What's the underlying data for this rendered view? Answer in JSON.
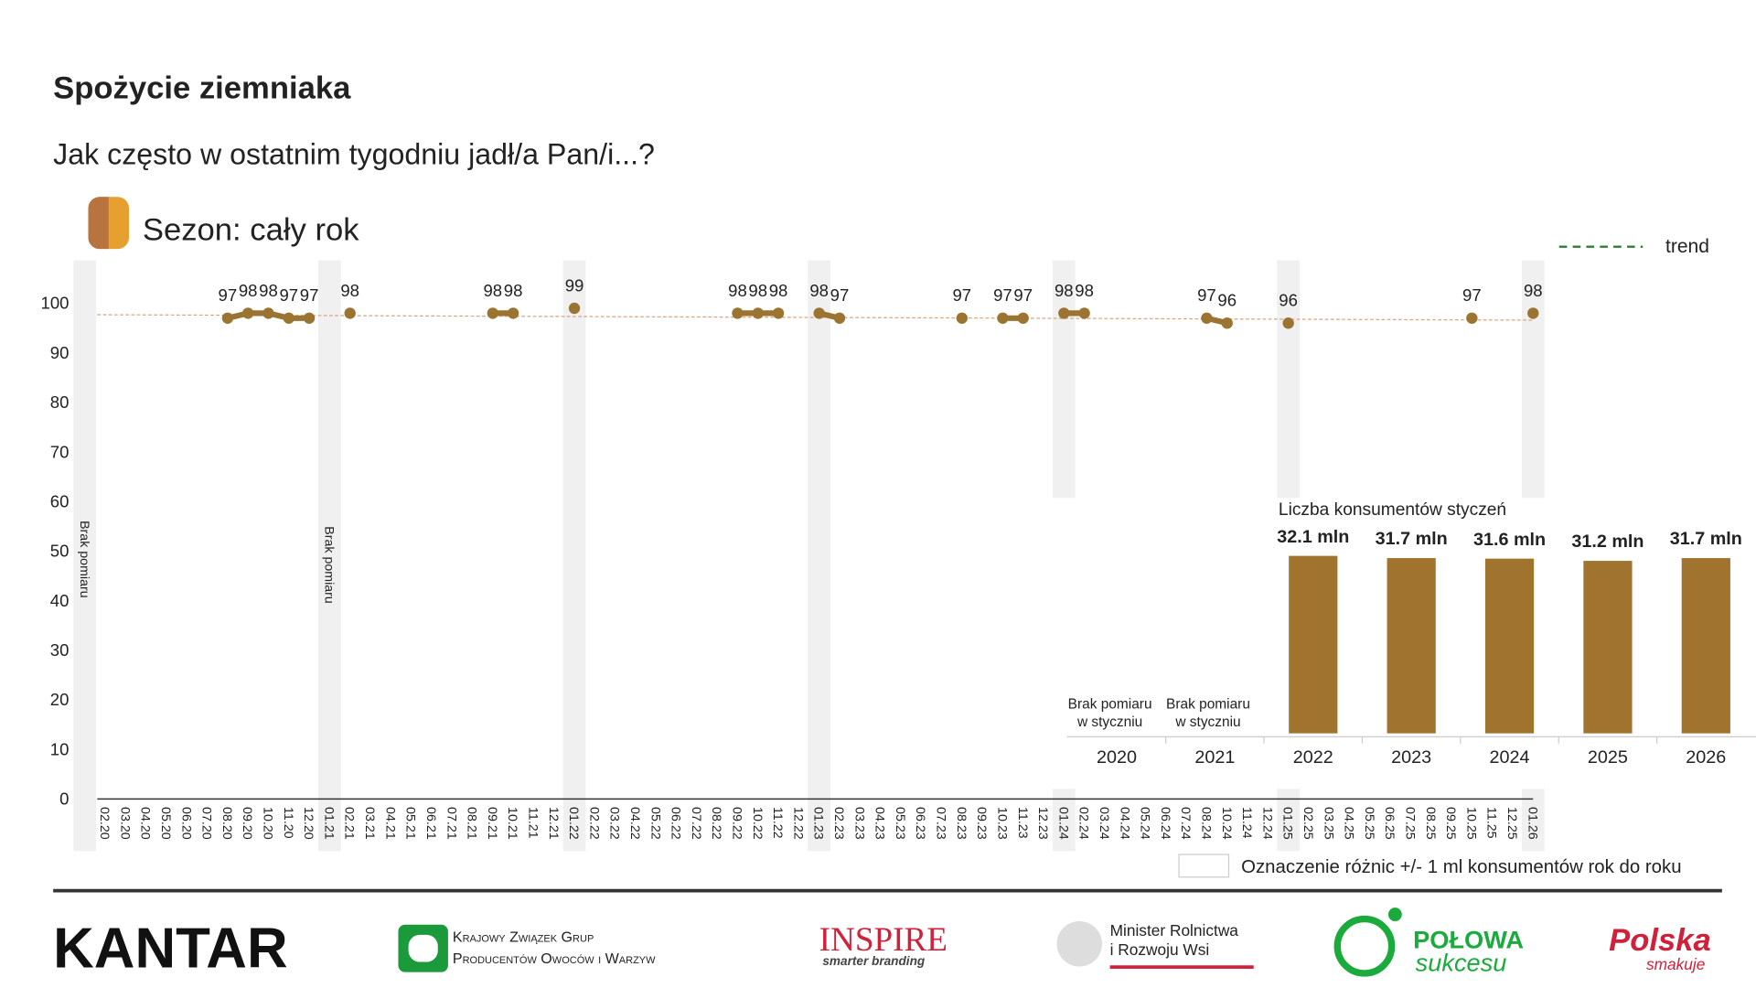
{
  "header": {
    "title": "Spożycie ziemniaka",
    "subtitle": "Jak często w ostatnim tygodniu jadł/a Pan/i...?",
    "season": "Sezon: cały rok"
  },
  "chart_data": [
    {
      "type": "line",
      "categories": [
        "02.20",
        "03.20",
        "04.20",
        "05.20",
        "06.20",
        "07.20",
        "08.20",
        "09.20",
        "10.20",
        "11.20",
        "12.20",
        "01.21",
        "02.21",
        "03.21",
        "04.21",
        "05.21",
        "06.21",
        "07.21",
        "08.21",
        "09.21",
        "10.21",
        "11.21",
        "12.21",
        "01.22",
        "02.22",
        "03.22",
        "04.22",
        "05.22",
        "06.22",
        "07.22",
        "08.22",
        "09.22",
        "10.22",
        "11.22",
        "12.22",
        "01.23",
        "02.23",
        "03.23",
        "04.23",
        "05.23",
        "06.23",
        "07.23",
        "08.23",
        "09.23",
        "10.23",
        "11.23",
        "12.23",
        "01.24",
        "02.24",
        "03.24",
        "04.24",
        "05.24",
        "06.24",
        "07.24",
        "08.24",
        "10.24",
        "11.24",
        "12.24",
        "01.25",
        "02.25",
        "03.25",
        "04.25",
        "05.25",
        "06.25",
        "07.25",
        "08.25",
        "09.25",
        "10.25",
        "11.25",
        "12.25",
        "01.26"
      ],
      "values": [
        null,
        null,
        null,
        null,
        null,
        null,
        97,
        98,
        98,
        97,
        97,
        null,
        98,
        null,
        null,
        null,
        null,
        null,
        null,
        98,
        98,
        null,
        null,
        99,
        null,
        null,
        null,
        null,
        null,
        null,
        null,
        98,
        98,
        98,
        null,
        98,
        97,
        null,
        null,
        null,
        null,
        null,
        97,
        null,
        97,
        97,
        null,
        98,
        98,
        null,
        null,
        null,
        null,
        null,
        97,
        96,
        null,
        null,
        96,
        null,
        null,
        null,
        null,
        null,
        null,
        null,
        null,
        97,
        null,
        null,
        98
      ],
      "color": "#9b7431",
      "ylim": [
        0,
        100
      ],
      "yticks": [
        0,
        10,
        20,
        30,
        40,
        50,
        60,
        70,
        80,
        90,
        100
      ],
      "trend": {
        "name": "trend",
        "color": "#2e7d32",
        "line_color": "#d9a47c",
        "start": 97.7,
        "end": 96.6
      },
      "legend": "top-right",
      "annotations": [
        "Brak pomiaru",
        "Brak pomiaru"
      ]
    },
    {
      "type": "bar",
      "title": "Liczba konsumentów styczeń",
      "categories": [
        "2020",
        "2021",
        "2022",
        "2023",
        "2024",
        "2025",
        "2026"
      ],
      "values": [
        null,
        null,
        32.1,
        31.7,
        31.6,
        31.2,
        31.7
      ],
      "value_labels": [
        null,
        null,
        "32.1 mln",
        "31.7 mln",
        "31.6 mln",
        "31.2 mln",
        "31.7 mln"
      ],
      "annotations": [
        [
          "Brak pomiaru",
          "w styczniu"
        ],
        [
          "Brak pomiaru",
          "w styczniu"
        ]
      ],
      "color": "#a0742e",
      "ylim": [
        0,
        35
      ],
      "note": "Oznaczenie różnic +/- 1 ml konsumentów rok do roku"
    }
  ],
  "footer": {
    "logos": [
      "KANTAR",
      "Krajowy Związek Grup",
      "Producentów Owoców i Warzyw",
      "INSPIRE",
      "smarter branding",
      "Minister Rolnictwa",
      "i Rozwoju Wsi",
      "POŁOWA",
      "sukcesu",
      "Polska",
      "smakuje"
    ]
  }
}
